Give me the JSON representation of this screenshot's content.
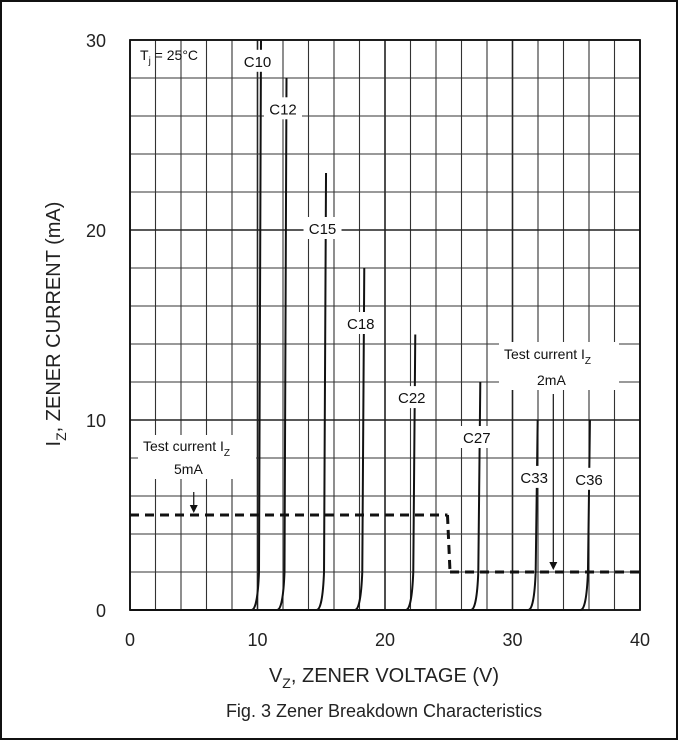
{
  "chart_data": {
    "type": "line",
    "caption": "Fig. 3  Zener Breakdown Characteristics",
    "xlabel": "V",
    "xlabel_sub": "Z",
    "xlabel_rest": ", ZENER VOLTAGE (V)",
    "ylabel": "I",
    "ylabel_sub": "Z",
    "ylabel_rest": ", ZENER CURRENT (mA)",
    "xlim": [
      0,
      40
    ],
    "ylim": [
      0,
      30
    ],
    "xticks": [
      "0",
      "10",
      "20",
      "30",
      "40"
    ],
    "yticks": [
      "0",
      "10",
      "20",
      "30"
    ],
    "grid": true,
    "condition": {
      "main": "T",
      "sub": "j",
      "rest": " = 25°C"
    },
    "series": [
      {
        "name": "C10",
        "vz": 10.0,
        "peak": 30
      },
      {
        "name": "C12",
        "vz": 12.0,
        "peak": 28
      },
      {
        "name": "C15",
        "vz": 15.1,
        "peak": 23
      },
      {
        "name": "C18",
        "vz": 18.1,
        "peak": 18
      },
      {
        "name": "C22",
        "vz": 22.1,
        "peak": 14.5
      },
      {
        "name": "C27",
        "vz": 27.2,
        "peak": 12
      },
      {
        "name": "C33",
        "vz": 31.7,
        "peak": 10
      },
      {
        "name": "C36",
        "vz": 35.8,
        "peak": 10
      }
    ],
    "test_current_lines": [
      {
        "label_line1": "Test current I",
        "label_sub": "Z",
        "label_line2": "5mA",
        "current_ma": 5,
        "x_from": 0,
        "x_to": 24.9
      },
      {
        "label_line1": "Test current I",
        "label_sub": "Z",
        "label_line2": "2mA",
        "current_ma": 2,
        "x_from": 25.1,
        "x_to": 40
      }
    ]
  }
}
